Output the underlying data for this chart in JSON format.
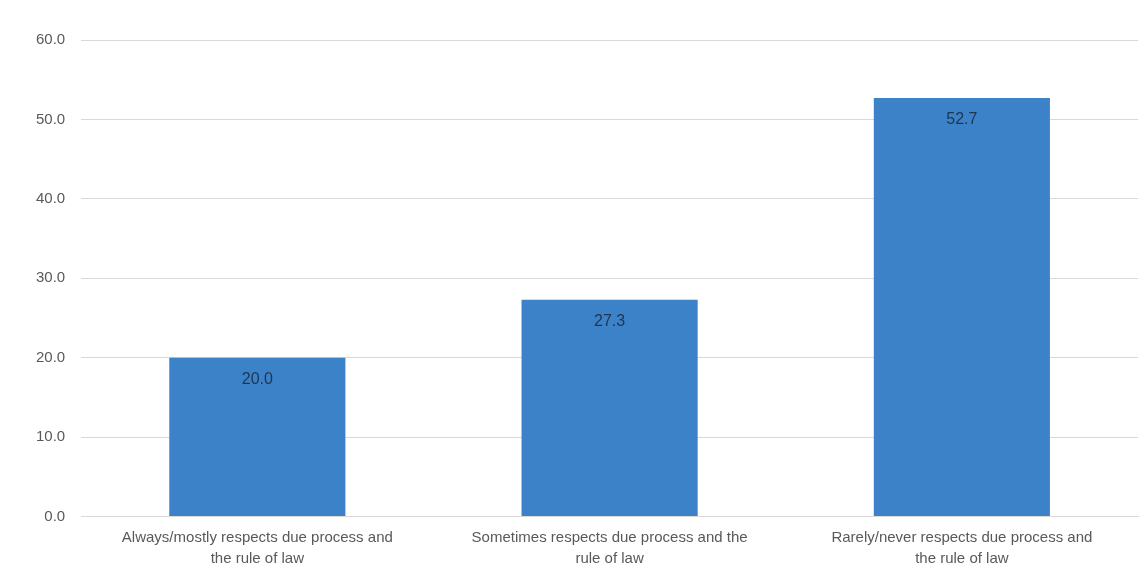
{
  "chart_data": {
    "type": "bar",
    "categories": [
      "Always/mostly respects due process and the rule of law",
      "Sometimes respects due process and the rule of law",
      "Rarely/never respects due process and the rule of law"
    ],
    "values": [
      20.0,
      27.3,
      52.7
    ],
    "color": "#3b82c8",
    "value_labels": [
      "20.0",
      "27.3",
      "52.7"
    ],
    "ylim": [
      0,
      60
    ],
    "yticks": [
      {
        "value": 0,
        "label": "0.0"
      },
      {
        "value": 10,
        "label": "10.0"
      },
      {
        "value": 20,
        "label": "20.0"
      },
      {
        "value": 30,
        "label": "30.0"
      },
      {
        "value": 40,
        "label": "40.0"
      },
      {
        "value": 50,
        "label": "50.0"
      },
      {
        "value": 60,
        "label": "60.0"
      }
    ],
    "grid": "y",
    "legend": false
  }
}
